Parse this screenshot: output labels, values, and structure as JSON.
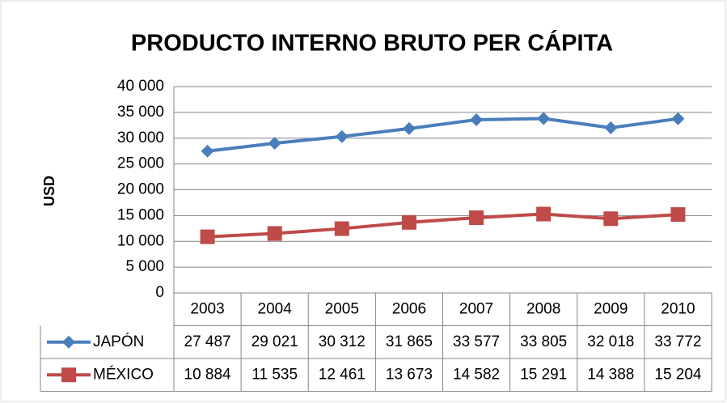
{
  "chart_data": {
    "type": "line",
    "title": "PRODUCTO INTERNO BRUTO PER CÁPITA",
    "y_label": "USD",
    "categories": [
      "2003",
      "2004",
      "2005",
      "2006",
      "2007",
      "2008",
      "2009",
      "2010"
    ],
    "series": [
      {
        "name": "JAPÓN",
        "color": "#4a7ebb",
        "marker": "diamond",
        "values": [
          27487,
          29021,
          30312,
          31865,
          33577,
          33805,
          32018,
          33772
        ],
        "value_labels": [
          "27 487",
          "29 021",
          "30 312",
          "31 865",
          "33 577",
          "33 805",
          "32 018",
          "33 772"
        ]
      },
      {
        "name": "MÉXICO",
        "color": "#be4b48",
        "marker": "square",
        "values": [
          10884,
          11535,
          12461,
          13673,
          14582,
          15291,
          14388,
          15204
        ],
        "value_labels": [
          "10 884",
          "11 535",
          "12 461",
          "13 673",
          "14 582",
          "15 291",
          "14 388",
          "15 204"
        ]
      }
    ],
    "ylim": [
      0,
      40000
    ],
    "yticks": [
      0,
      {
        "value": 5000,
        "label": "5 000"
      },
      {
        "value": 10000,
        "label": "10 000"
      },
      {
        "value": 15000,
        "label": "15 000"
      },
      {
        "value": 20000,
        "label": "20 000"
      },
      {
        "value": 25000,
        "label": "25 000"
      },
      {
        "value": 30000,
        "label": "30 000"
      },
      {
        "value": 35000,
        "label": "35 000"
      },
      {
        "value": 40000,
        "label": "40 000"
      }
    ],
    "grid": true,
    "data_table": true
  }
}
